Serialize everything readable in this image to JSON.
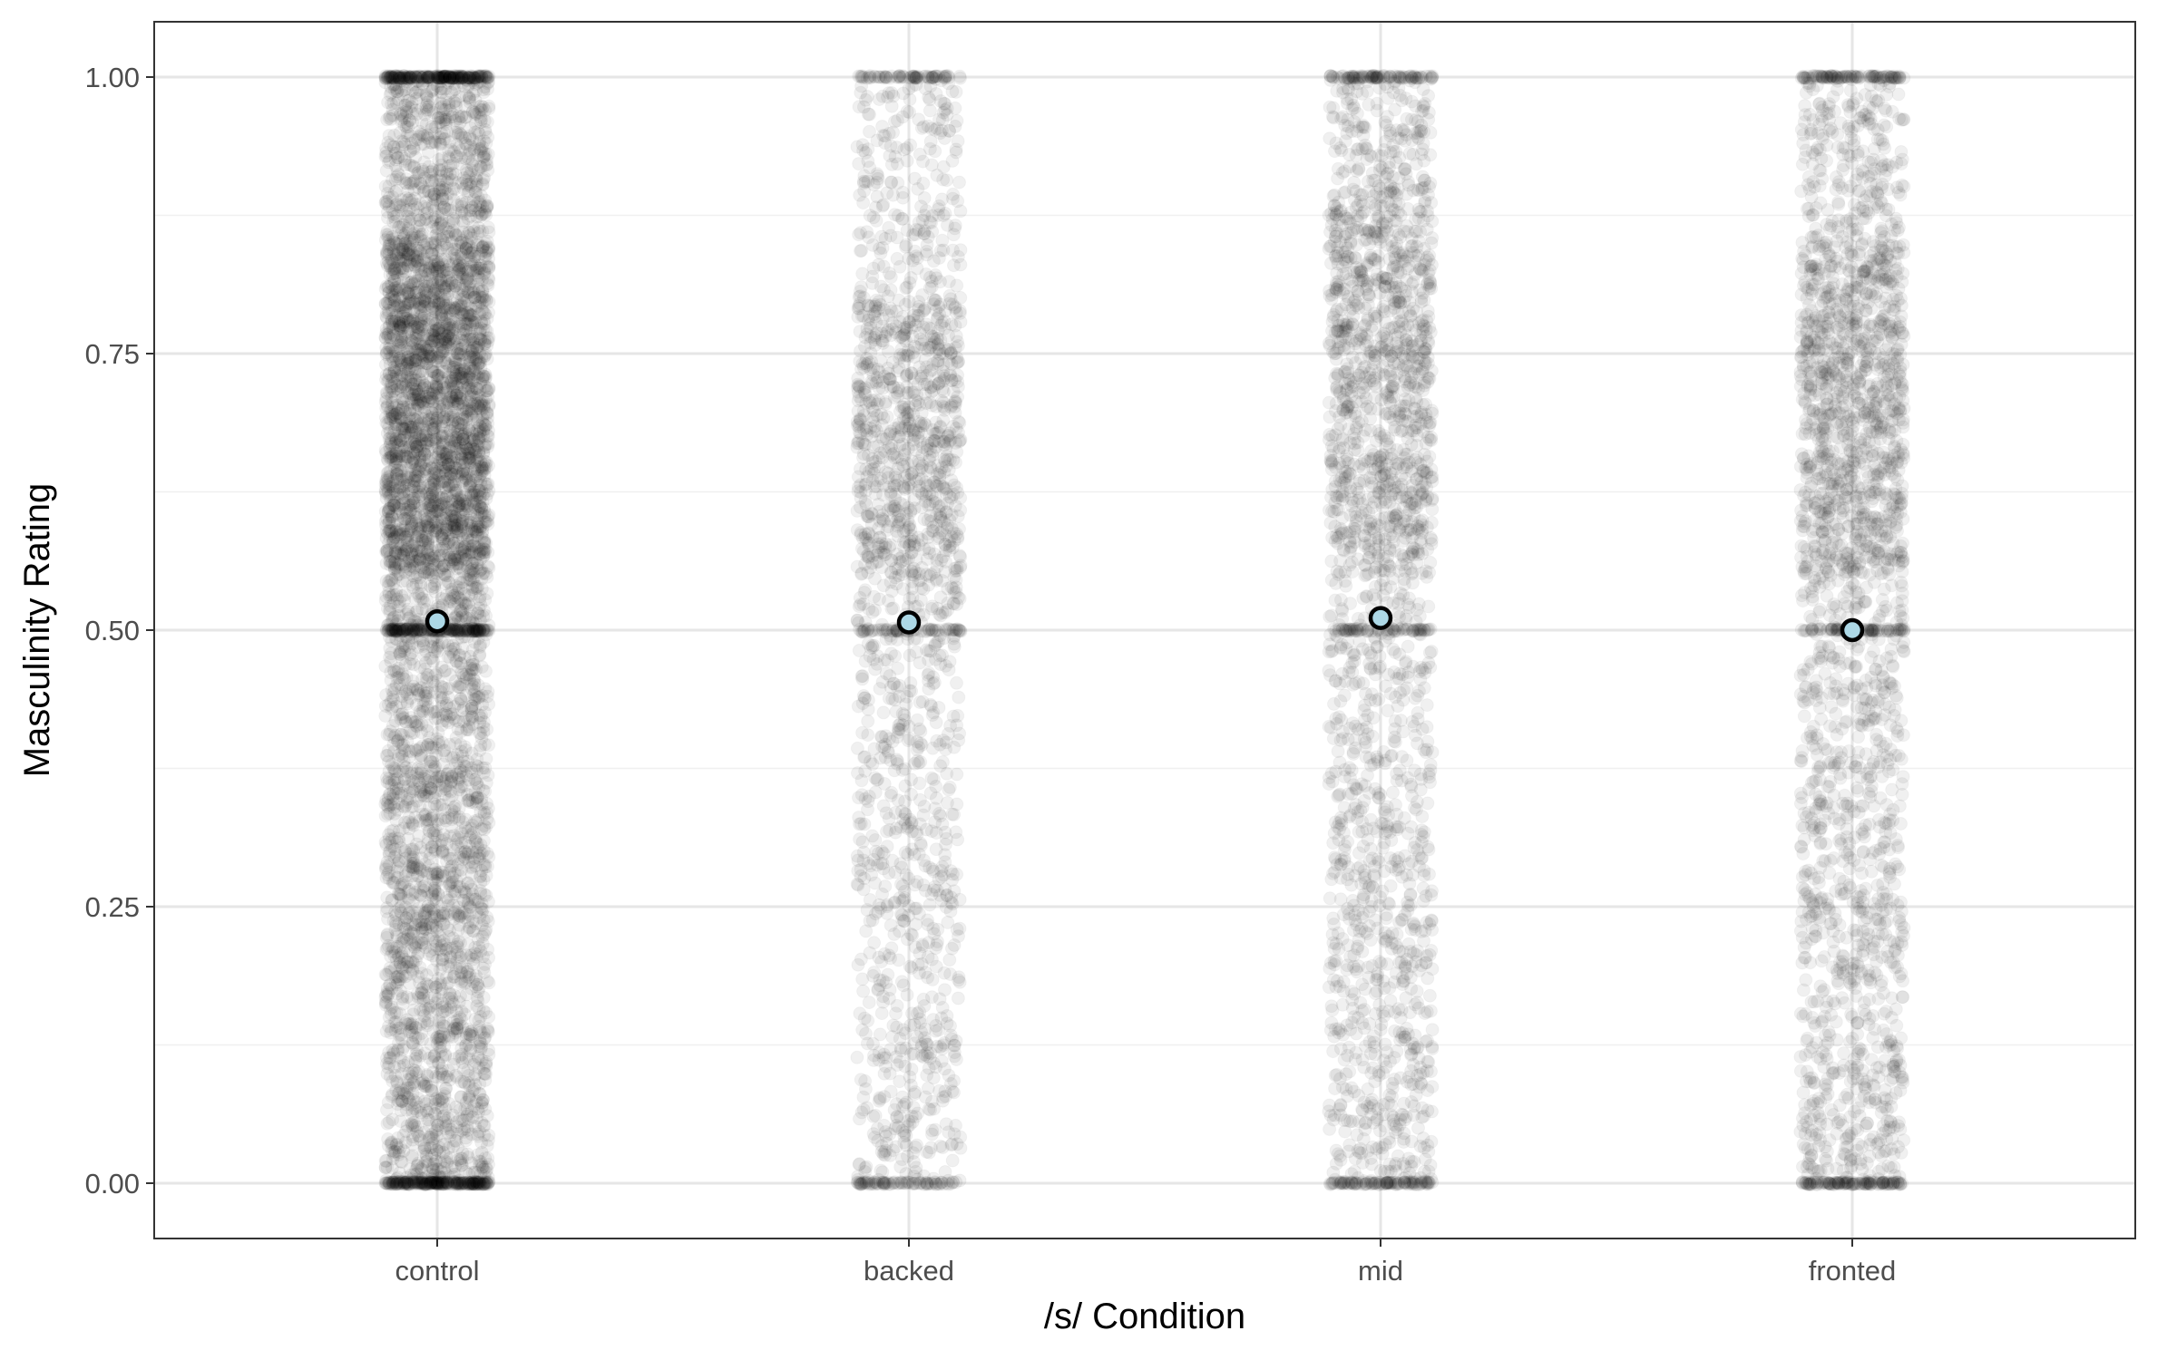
{
  "chart_data": {
    "type": "scatter",
    "title": "",
    "xlabel": "/s/ Condition",
    "ylabel": "Masculinity Rating",
    "categories": [
      "control",
      "backed",
      "mid",
      "fronted"
    ],
    "ylim": [
      -0.05,
      1.05
    ],
    "y_ticks": [
      0.0,
      0.25,
      0.5,
      0.75,
      1.0
    ],
    "y_tick_labels": [
      "0.00",
      "0.25",
      "0.50",
      "0.75",
      "1.00"
    ],
    "grid": true,
    "legend": "none",
    "theme": "bw",
    "points": {
      "description_count": [
        6000,
        2000,
        2400,
        2600
      ],
      "density_peak": [
        {
          "category": "control",
          "low": 0.55,
          "high": 0.85
        },
        {
          "category": "backed",
          "low": 0.55,
          "high": 0.8
        },
        {
          "category": "mid",
          "low": 0.55,
          "high": 0.9
        },
        {
          "category": "fronted",
          "low": 0.55,
          "high": 0.85
        }
      ],
      "color": "#000000",
      "opacity": 0.06
    },
    "means": [
      {
        "category": "control",
        "value": 0.508
      },
      {
        "category": "backed",
        "value": 0.507
      },
      {
        "category": "mid",
        "value": 0.511
      },
      {
        "category": "fronted",
        "value": 0.5
      }
    ],
    "mean_fill": "#add8e6",
    "mean_stroke": "#000000"
  }
}
